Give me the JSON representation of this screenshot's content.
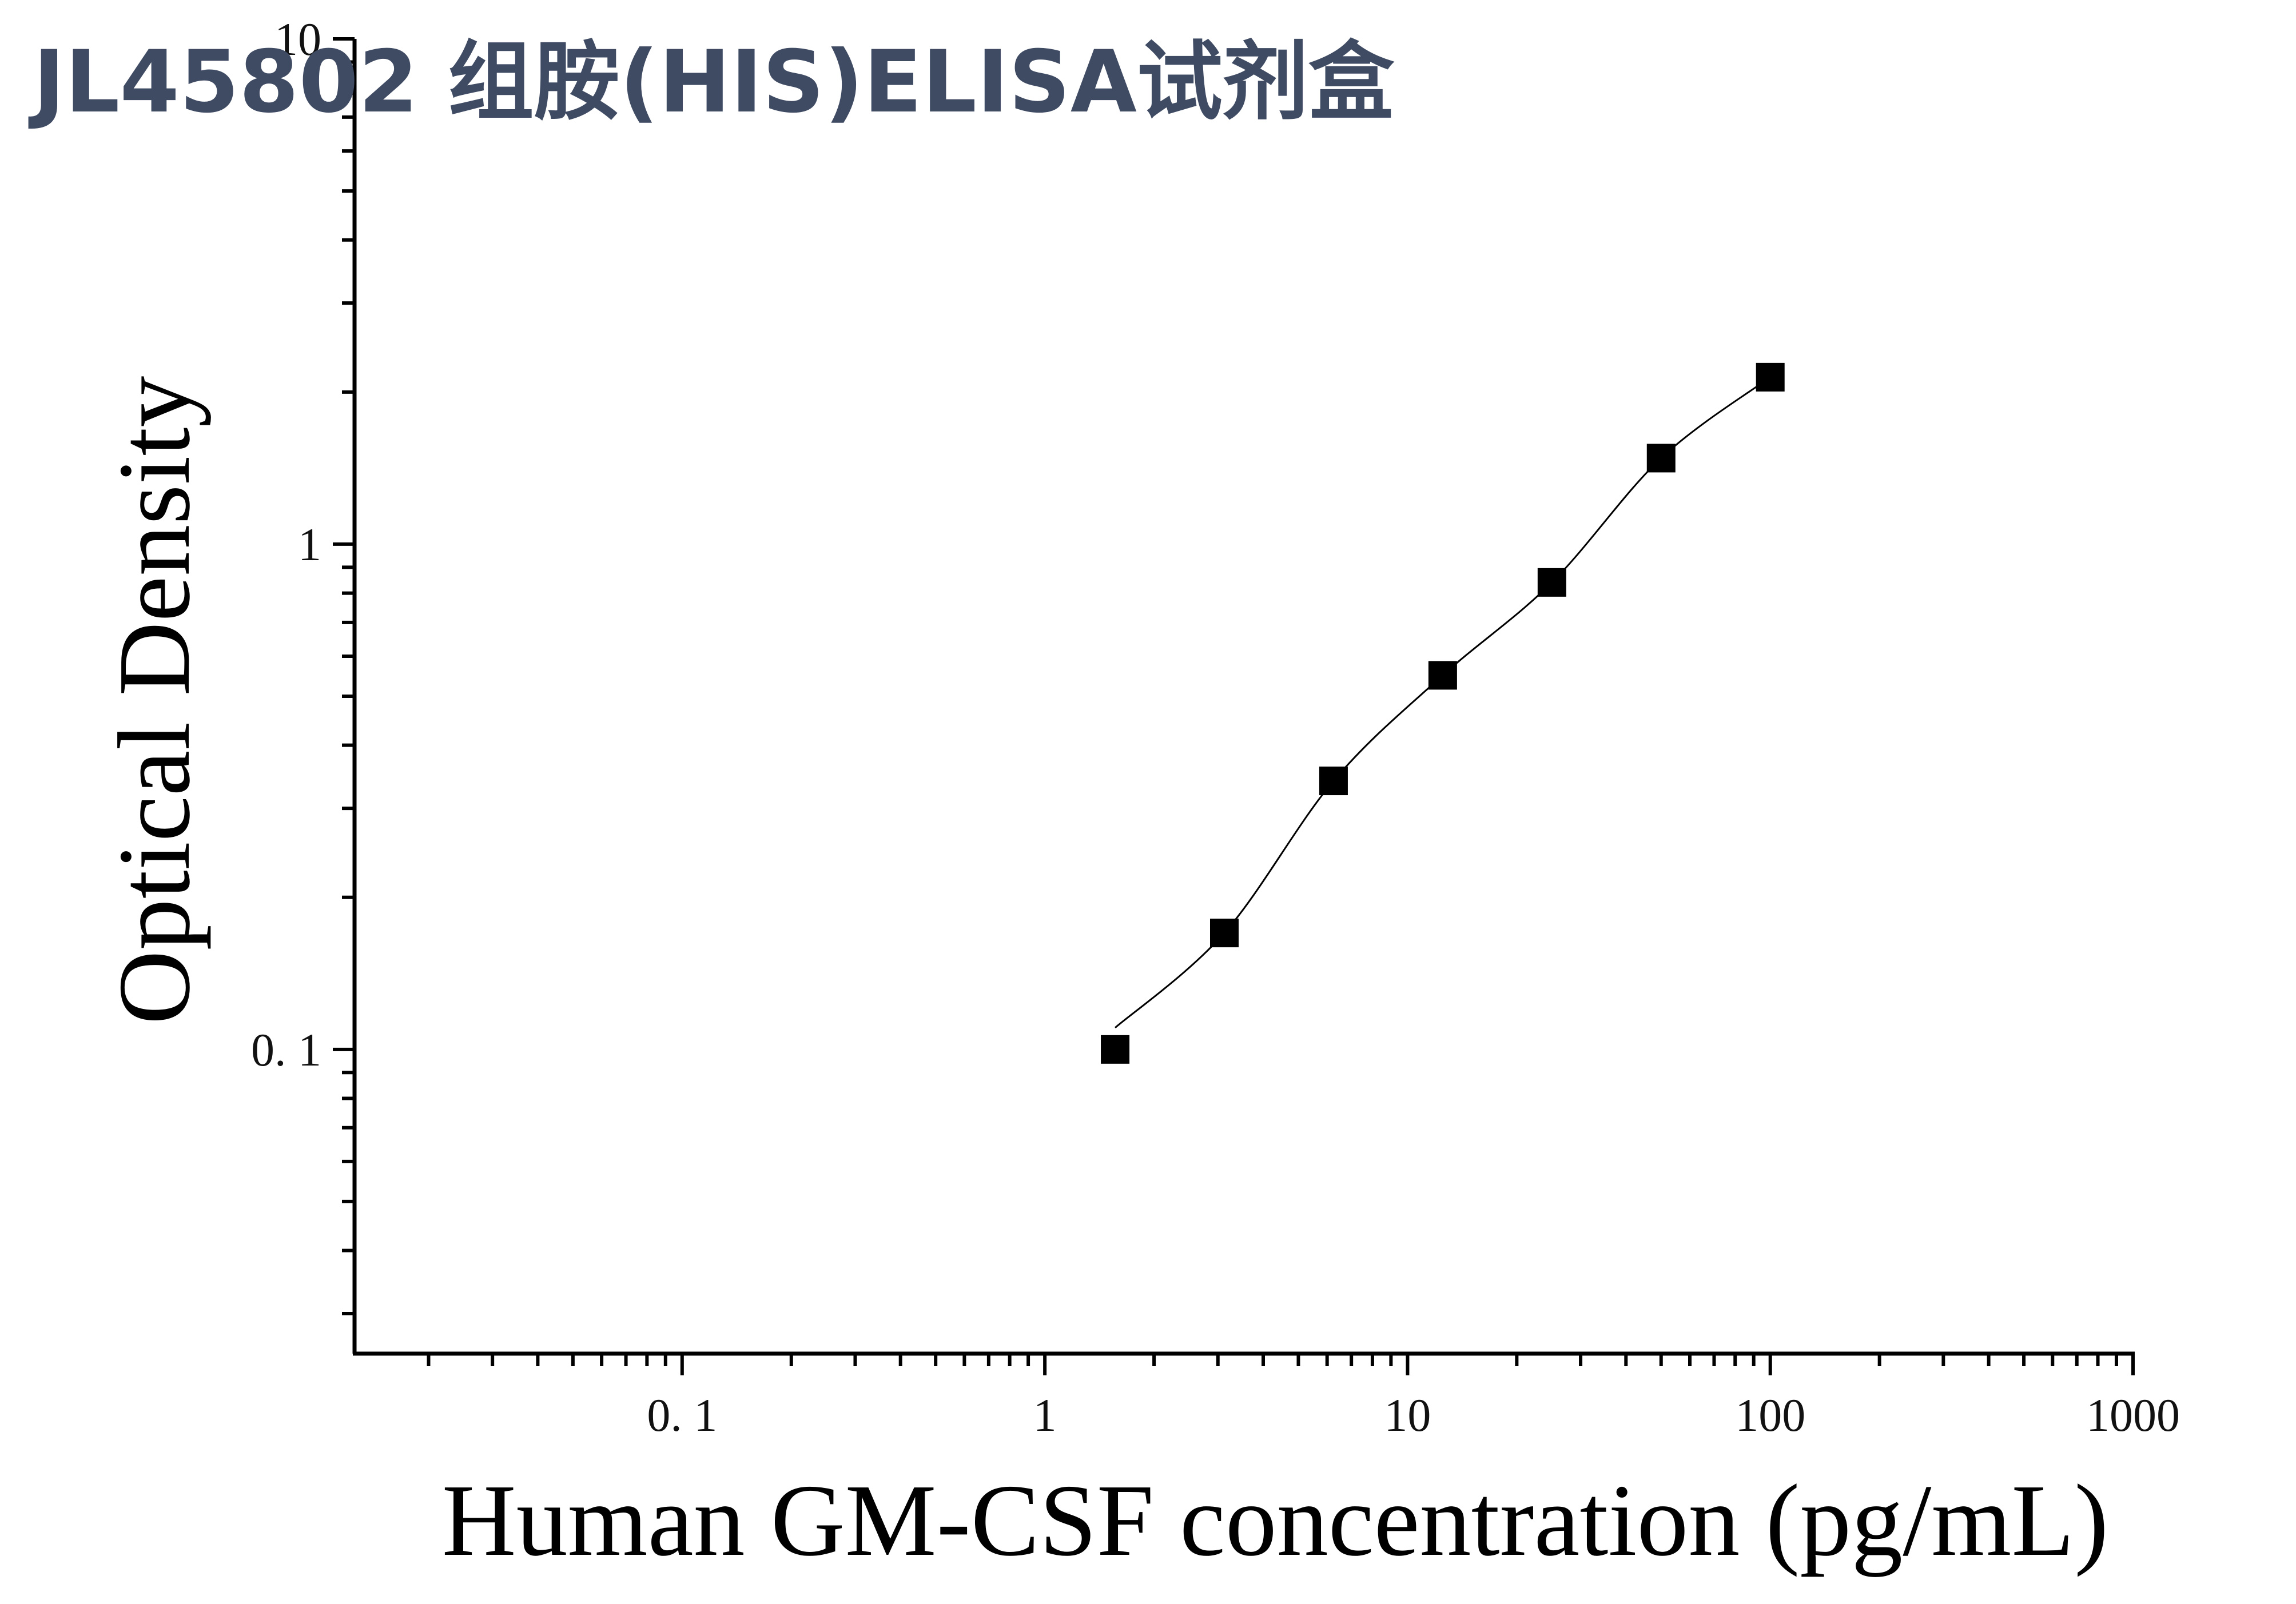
{
  "page_title": "JL45802 组胺(HIS)ELISA试剂盒",
  "chart_data": {
    "type": "scatter",
    "xscale": "log",
    "yscale": "log",
    "xlabel": "Human GM-CSF concentration (pg/mL)",
    "ylabel": "Optical Density",
    "xlim": [
      0.0125,
      1000
    ],
    "ylim": [
      0.025,
      10
    ],
    "x_ticks": [
      {
        "value": 0.1,
        "label": "0. 1"
      },
      {
        "value": 1,
        "label": "1"
      },
      {
        "value": 10,
        "label": "10"
      },
      {
        "value": 100,
        "label": "100"
      },
      {
        "value": 1000,
        "label": "1000"
      }
    ],
    "y_ticks": [
      {
        "value": 0.1,
        "label": "0. 1"
      },
      {
        "value": 1,
        "label": "1"
      },
      {
        "value": 10,
        "label": "10"
      }
    ],
    "series": [
      {
        "marker": "square",
        "color": "#000000",
        "x": [
          1.5625,
          3.125,
          6.25,
          12.5,
          25,
          50,
          100
        ],
        "y": [
          0.1,
          0.17,
          0.34,
          0.55,
          0.84,
          1.48,
          2.14
        ]
      }
    ],
    "fit_line": true,
    "grid": false,
    "legend": false
  }
}
